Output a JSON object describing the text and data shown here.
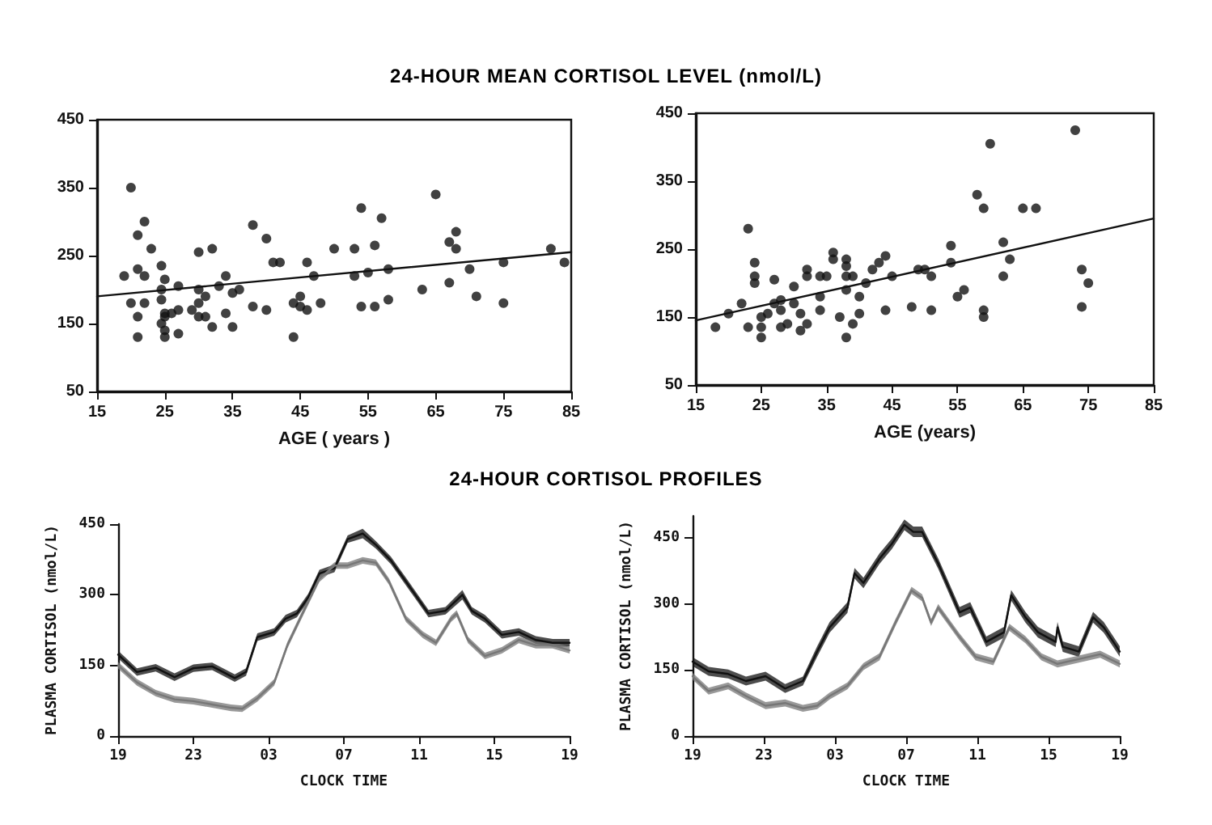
{
  "chart_data": [
    {
      "type": "scatter",
      "title": "24-HOUR MEAN CORTISOL LEVEL (nmol/L)",
      "xlabel": "AGE ( years )",
      "marker": "circle",
      "xlim": [
        15,
        85
      ],
      "xticks": [
        15,
        25,
        35,
        45,
        55,
        65,
        75,
        85
      ],
      "ylim": [
        50,
        450
      ],
      "yticks": [
        50,
        150,
        250,
        350,
        450
      ],
      "series": [
        {
          "color": "#111111",
          "x": [
            20,
            19,
            20,
            21,
            21,
            22,
            22,
            22,
            21,
            21,
            23,
            24.5,
            24.5,
            24.5,
            24.5,
            25,
            25,
            25,
            25,
            25,
            26,
            27,
            27,
            27,
            29,
            30,
            30,
            30,
            30,
            31,
            31,
            32,
            32,
            33,
            34,
            34,
            35,
            35,
            36,
            38,
            38,
            40,
            40,
            41,
            42,
            44,
            44,
            45,
            45,
            46,
            46,
            47,
            48,
            50,
            53,
            53,
            54,
            54,
            55,
            56,
            56,
            57,
            58,
            58,
            63,
            65,
            67,
            67,
            68,
            68,
            70,
            71,
            75,
            75,
            82,
            84
          ],
          "values": [
            350,
            220,
            180,
            280,
            230,
            220,
            300,
            180,
            160,
            130,
            260,
            235,
            200,
            185,
            150,
            215,
            165,
            160,
            140,
            130,
            165,
            170,
            205,
            135,
            170,
            255,
            200,
            180,
            160,
            160,
            190,
            260,
            145,
            205,
            220,
            165,
            145,
            195,
            200,
            295,
            175,
            275,
            170,
            240,
            240,
            130,
            180,
            190,
            175,
            240,
            170,
            220,
            180,
            260,
            260,
            220,
            320,
            175,
            225,
            265,
            175,
            305,
            230,
            185,
            200,
            340,
            210,
            270,
            285,
            260,
            230,
            190,
            240,
            180,
            260,
            240
          ]
        },
        {
          "type": "line",
          "marker": "none",
          "color": "#111111",
          "x": [
            15,
            85
          ],
          "values": [
            190,
            255
          ]
        }
      ]
    },
    {
      "type": "scatter",
      "xlabel": "AGE (years)",
      "marker": "circle",
      "xlim": [
        15,
        85
      ],
      "xticks": [
        15,
        25,
        35,
        45,
        55,
        65,
        75,
        85
      ],
      "ylim": [
        50,
        450
      ],
      "yticks": [
        50,
        150,
        250,
        350,
        450
      ],
      "series": [
        {
          "color": "#111111",
          "x": [
            18,
            20,
            22,
            23,
            23,
            24,
            24,
            24,
            25,
            25,
            25,
            26,
            27,
            27,
            28,
            28,
            28,
            29,
            30,
            30,
            31,
            31,
            32,
            32,
            32,
            34,
            34,
            34,
            35,
            36,
            36,
            37,
            38,
            38,
            38,
            38,
            38,
            39,
            39,
            40,
            40,
            41,
            42,
            43,
            44,
            44,
            45,
            48,
            49,
            50,
            51,
            51,
            54,
            54,
            55,
            56,
            58,
            59,
            59,
            59,
            60,
            62,
            62,
            63,
            65,
            67,
            73,
            74,
            74,
            75
          ],
          "values": [
            135,
            155,
            170,
            280,
            135,
            230,
            210,
            200,
            150,
            135,
            120,
            155,
            205,
            170,
            175,
            160,
            135,
            140,
            195,
            170,
            155,
            130,
            220,
            210,
            140,
            210,
            180,
            160,
            210,
            245,
            235,
            150,
            235,
            225,
            210,
            190,
            120,
            210,
            140,
            180,
            155,
            200,
            220,
            230,
            240,
            160,
            210,
            165,
            220,
            220,
            210,
            160,
            255,
            230,
            180,
            190,
            330,
            310,
            160,
            150,
            405,
            260,
            210,
            235,
            310,
            310,
            425,
            220,
            165,
            200
          ]
        },
        {
          "type": "line",
          "marker": "none",
          "color": "#111111",
          "x": [
            15,
            85
          ],
          "values": [
            145,
            295
          ]
        }
      ]
    },
    {
      "type": "line",
      "title": "24-HOUR CORTISOL PROFILES",
      "xlabel": "CLOCK TIME",
      "ylabel": "PLASMA CORTISOL (nmol/L)",
      "marker": "none",
      "xlim": [
        "--01-01T19:00",
        "--01-02T19:00"
      ],
      "xticks": [
        {
          "value": "--01-01T19:00",
          "label": "19"
        },
        {
          "value": "--01-01T23:00",
          "label": "23"
        },
        {
          "value": "--01-02T03:00",
          "label": "03"
        },
        {
          "value": "--01-02T07:00",
          "label": "07"
        },
        {
          "value": "--01-02T11:00",
          "label": "11"
        },
        {
          "value": "--01-02T15:00",
          "label": "15"
        },
        {
          "value": "--01-02T19:00",
          "label": "19"
        }
      ],
      "ylim": [
        0,
        450
      ],
      "yticks": [
        0,
        150,
        300,
        450
      ],
      "series": [
        {
          "color": "#111111",
          "x": [
            "--01-01T19:00",
            "--01-01T20:00",
            "--01-01T21:00",
            "--01-01T22:00",
            "--01-01T23:00",
            "--01-02T00:00",
            "--01-02T01:12",
            "--01-02T01:48",
            "--01-02T02:24",
            "--01-02T03:18",
            "--01-02T03:54",
            "--01-02T04:30",
            "--01-02T05:06",
            "--01-02T05:42",
            "--01-02T06:30",
            "--01-02T07:12",
            "--01-02T08:00",
            "--01-02T08:42",
            "--01-02T09:30",
            "--01-02T10:18",
            "--01-02T11:30",
            "--01-02T12:24",
            "--01-02T13:18",
            "--01-02T13:48",
            "--01-02T14:30",
            "--01-02T15:24",
            "--01-02T16:18",
            "--01-02T17:12",
            "--01-02T18:06",
            "--01-02T19:00"
          ],
          "values": [
            173,
            136,
            145,
            125,
            144,
            148,
            123,
            136,
            210,
            221,
            249,
            260,
            294,
            345,
            356,
            418,
            430,
            406,
            373,
            328,
            260,
            266,
            300,
            266,
            249,
            215,
            221,
            204,
            198,
            198
          ],
          "lower": [
            165,
            128,
            137,
            117,
            136,
            140,
            115,
            128,
            202,
            213,
            241,
            252,
            286,
            337,
            348,
            410,
            420,
            398,
            365,
            320,
            252,
            258,
            290,
            258,
            241,
            207,
            213,
            196,
            190,
            190
          ],
          "upper": [
            181,
            144,
            153,
            133,
            152,
            156,
            131,
            144,
            218,
            229,
            257,
            268,
            302,
            353,
            364,
            426,
            440,
            414,
            381,
            336,
            268,
            274,
            310,
            274,
            257,
            223,
            229,
            212,
            206,
            206
          ]
        },
        {
          "color": "#777777",
          "x": [
            "--01-01T19:00",
            "--01-01T20:00",
            "--01-01T21:00",
            "--01-01T22:00",
            "--01-01T23:00",
            "--01-02T00:00",
            "--01-02T01:00",
            "--01-02T01:36",
            "--01-02T02:24",
            "--01-02T03:18",
            "--01-02T04:00",
            "--01-02T04:48",
            "--01-02T05:42",
            "--01-02T06:30",
            "--01-02T07:12",
            "--01-02T08:00",
            "--01-02T08:42",
            "--01-02T09:24",
            "--01-02T10:18",
            "--01-02T11:12",
            "--01-02T11:54",
            "--01-02T12:42",
            "--01-02T13:00",
            "--01-02T13:36",
            "--01-02T14:30",
            "--01-02T15:24",
            "--01-02T16:18",
            "--01-02T17:12",
            "--01-02T18:06",
            "--01-02T19:00"
          ],
          "values": [
            150,
            114,
            91,
            78,
            74,
            67,
            60,
            58,
            80,
            114,
            193,
            260,
            334,
            362,
            362,
            373,
            368,
            328,
            249,
            215,
            198,
            249,
            260,
            204,
            170,
            182,
            204,
            193,
            193,
            182
          ],
          "lower": [
            143,
            107,
            84,
            71,
            67,
            60,
            53,
            51,
            73,
            107,
            186,
            253,
            327,
            355,
            355,
            366,
            361,
            321,
            242,
            208,
            191,
            242,
            253,
            197,
            163,
            175,
            197,
            186,
            186,
            175
          ],
          "upper": [
            157,
            121,
            98,
            85,
            81,
            74,
            67,
            65,
            87,
            121,
            200,
            267,
            341,
            369,
            369,
            380,
            375,
            335,
            256,
            222,
            205,
            256,
            267,
            211,
            177,
            189,
            211,
            200,
            200,
            189
          ]
        }
      ]
    },
    {
      "type": "line",
      "xlabel": "CLOCK TIME",
      "ylabel": "PLASMA CORTISOL (nmol/L)",
      "marker": "none",
      "xlim": [
        "--01-01T19:00",
        "--01-02T19:00"
      ],
      "xticks": [
        {
          "value": "--01-01T19:00",
          "label": "19"
        },
        {
          "value": "--01-01T23:00",
          "label": "23"
        },
        {
          "value": "--01-02T03:00",
          "label": "03"
        },
        {
          "value": "--01-02T07:00",
          "label": "07"
        },
        {
          "value": "--01-02T11:00",
          "label": "11"
        },
        {
          "value": "--01-02T15:00",
          "label": "15"
        },
        {
          "value": "--01-02T19:00",
          "label": "19"
        }
      ],
      "ylim": [
        0,
        500
      ],
      "yticks": [
        0,
        150,
        300,
        450
      ],
      "series": [
        {
          "color": "#111111",
          "x": [
            "--01-01T19:00",
            "--01-01T19:54",
            "--01-01T21:00",
            "--01-01T22:00",
            "--01-01T23:06",
            "--01-02T00:12",
            "--01-02T01:12",
            "--01-02T02:00",
            "--01-02T02:42",
            "--01-02T03:42",
            "--01-02T04:06",
            "--01-02T04:36",
            "--01-02T05:30",
            "--01-02T06:12",
            "--01-02T06:54",
            "--01-02T07:24",
            "--01-02T07:54",
            "--01-02T08:48",
            "--01-02T10:00",
            "--01-02T10:36",
            "--01-02T11:30",
            "--01-02T12:30",
            "--01-02T12:54",
            "--01-02T13:42",
            "--01-02T14:24",
            "--01-02T15:24",
            "--01-02T15:30",
            "--01-02T15:48",
            "--01-02T16:42",
            "--01-02T17:30",
            "--01-02T18:06",
            "--01-02T19:00"
          ],
          "values": [
            169,
            147,
            141,
            125,
            136,
            108,
            125,
            192,
            247,
            292,
            370,
            348,
            403,
            437,
            480,
            464,
            464,
            392,
            281,
            292,
            214,
            236,
            320,
            270,
            236,
            214,
            247,
            203,
            192,
            270,
            247,
            192
          ],
          "lower": [
            159,
            137,
            131,
            115,
            126,
            98,
            115,
            180,
            235,
            280,
            358,
            336,
            391,
            425,
            468,
            452,
            452,
            380,
            269,
            280,
            202,
            224,
            308,
            258,
            224,
            202,
            235,
            191,
            180,
            258,
            235,
            180
          ],
          "upper": [
            179,
            157,
            151,
            135,
            146,
            118,
            135,
            204,
            259,
            304,
            382,
            360,
            415,
            449,
            492,
            476,
            476,
            404,
            293,
            304,
            226,
            248,
            332,
            282,
            248,
            226,
            259,
            215,
            204,
            282,
            259,
            204
          ]
        },
        {
          "color": "#777777",
          "x": [
            "--01-01T19:00",
            "--01-01T19:54",
            "--01-01T21:00",
            "--01-01T22:00",
            "--01-01T23:06",
            "--01-02T00:12",
            "--01-02T01:12",
            "--01-02T02:00",
            "--01-02T02:42",
            "--01-02T03:42",
            "--01-02T04:36",
            "--01-02T05:30",
            "--01-02T06:24",
            "--01-02T07:18",
            "--01-02T07:54",
            "--01-02T08:24",
            "--01-02T08:48",
            "--01-02T10:00",
            "--01-02T10:54",
            "--01-02T11:54",
            "--01-02T12:48",
            "--01-02T13:42",
            "--01-02T14:36",
            "--01-02T15:30",
            "--01-02T16:42",
            "--01-02T17:54",
            "--01-02T19:00"
          ],
          "values": [
            136,
            102,
            114,
            91,
            69,
            75,
            63,
            69,
            91,
            114,
            158,
            180,
            258,
            331,
            314,
            258,
            292,
            225,
            180,
            169,
            247,
            219,
            180,
            164,
            175,
            186,
            164
          ],
          "lower": [
            128,
            94,
            106,
            83,
            61,
            67,
            55,
            61,
            83,
            106,
            150,
            172,
            250,
            323,
            306,
            250,
            284,
            217,
            172,
            161,
            239,
            211,
            172,
            156,
            167,
            178,
            156
          ],
          "upper": [
            144,
            110,
            122,
            99,
            77,
            83,
            71,
            77,
            99,
            122,
            166,
            188,
            266,
            339,
            322,
            266,
            300,
            233,
            188,
            177,
            255,
            227,
            188,
            172,
            183,
            194,
            172
          ]
        }
      ]
    }
  ]
}
